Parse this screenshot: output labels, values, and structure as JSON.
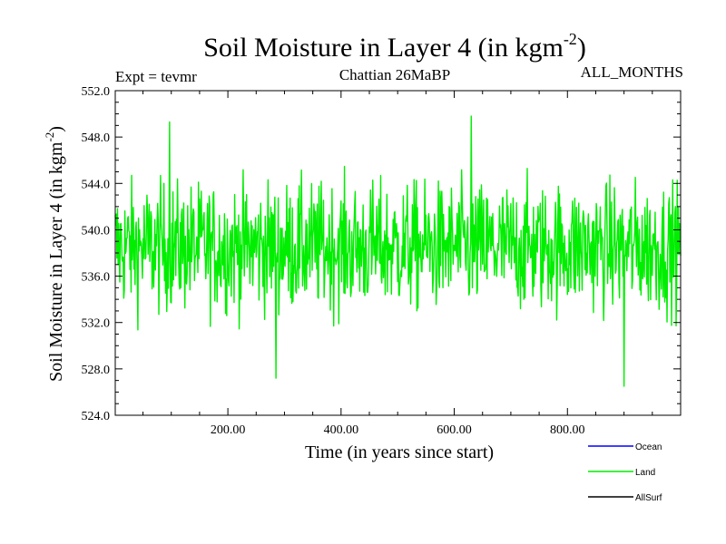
{
  "chart_data": {
    "type": "line",
    "title": "Soil Moisture in Layer 4 (in kgm",
    "title_sup": "-2",
    "title_close": ")",
    "experiment": "Expt = tevmr",
    "period": "Chattian  26MaBP",
    "months": "ALL_MONTHS",
    "xlabel": "Time (in years since start)",
    "ylabel": "Soil Moisture in Layer 4 (in kgm",
    "ylabel_sup": "-2",
    "ylabel_close": ")",
    "xlim": [
      1,
      1000
    ],
    "ylim": [
      524.0,
      552.0
    ],
    "x_ticks": [
      200,
      400,
      600,
      800
    ],
    "x_tick_labels": [
      "200.00",
      "400.00",
      "600.00",
      "800.00"
    ],
    "y_ticks": [
      524,
      528,
      532,
      536,
      540,
      544,
      548,
      552
    ],
    "y_tick_labels": [
      "524.0",
      "528.0",
      "532.0",
      "536.0",
      "540.0",
      "544.0",
      "548.0",
      "552.0"
    ],
    "series": [
      {
        "name": "Ocean",
        "color": "#0000ff",
        "values": []
      },
      {
        "name": "Land",
        "color": "#00ee00",
        "mean": 538.5,
        "min": 526.5,
        "max": 549.8,
        "notable_points": [
          [
            97,
            549.3
          ],
          [
            285,
            527.2
          ],
          [
            630,
            549.8
          ],
          [
            632,
            535.0
          ],
          [
            900,
            526.5
          ]
        ]
      },
      {
        "name": "AllSurf",
        "color": "#000000",
        "values": []
      }
    ]
  }
}
